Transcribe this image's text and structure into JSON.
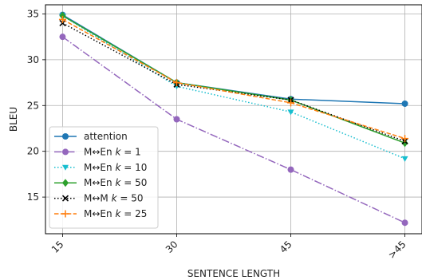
{
  "chart_data": {
    "type": "line",
    "xlabel": "SENTENCE LENGTH",
    "ylabel": "BLEU",
    "categories": [
      "15",
      "30",
      "45",
      ">45"
    ],
    "ylim": [
      11,
      36
    ],
    "yticks": [
      15,
      20,
      25,
      30,
      35
    ],
    "grid": true,
    "legend_position": "lower-left",
    "series": [
      {
        "name": "attention",
        "legend_parts": [
          "attention"
        ],
        "values": [
          34.9,
          27.5,
          25.7,
          25.2
        ],
        "color": "#1f77b4",
        "dash": "solid",
        "marker": "circle"
      },
      {
        "name": "M↔En k = 1",
        "legend_parts": [
          "M",
          "↔",
          "En ",
          "k",
          " = 1"
        ],
        "values": [
          32.5,
          23.5,
          18.0,
          12.2
        ],
        "color": "#9467bd",
        "dash": "dashdot",
        "marker": "circle"
      },
      {
        "name": "M↔En k = 10",
        "legend_parts": [
          "M",
          "↔",
          "En ",
          "k",
          " = 10"
        ],
        "values": [
          34.8,
          27.1,
          24.3,
          19.2
        ],
        "color": "#17becf",
        "dash": "dotted",
        "marker": "triangle-down"
      },
      {
        "name": "M↔En k = 50",
        "legend_parts": [
          "M",
          "↔",
          "En ",
          "k",
          " = 50"
        ],
        "values": [
          34.8,
          27.5,
          25.6,
          20.9
        ],
        "color": "#2ca02c",
        "dash": "solid",
        "marker": "diamond"
      },
      {
        "name": "M↔M k = 50",
        "legend_parts": [
          "M",
          "↔",
          "M  ",
          "k",
          " = 50"
        ],
        "values": [
          34.0,
          27.3,
          25.6,
          21.1
        ],
        "color": "#000000",
        "dash": "dotted",
        "marker": "x"
      },
      {
        "name": "M↔En k = 25",
        "legend_parts": [
          "M",
          "↔",
          "En ",
          "k",
          " = 25"
        ],
        "values": [
          34.4,
          27.5,
          25.3,
          21.4
        ],
        "color": "#ff7f0e",
        "dash": "dashed",
        "marker": "plus"
      }
    ]
  }
}
